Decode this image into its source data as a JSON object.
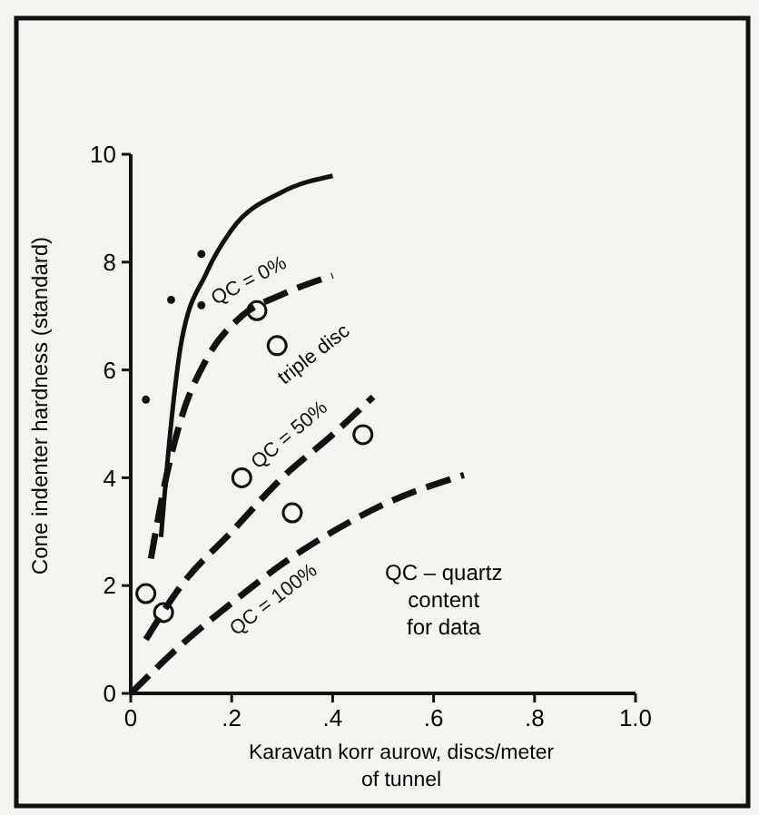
{
  "chart_data": {
    "type": "line",
    "xlabel": "Karavatn korr aurow, discs/meter of tunnel",
    "ylabel": "Cone indenter hardness (standard)",
    "xlim": [
      0,
      1.0
    ],
    "ylim": [
      0,
      10
    ],
    "xticks": [
      0,
      {
        "value": 0.2,
        "label": ".2"
      },
      {
        "value": 0.4,
        "label": ".4"
      },
      {
        "value": 0.6,
        "label": ".6"
      },
      {
        "value": 0.8,
        "label": ".8"
      },
      {
        "value": 1.0,
        "label": "1.0"
      }
    ],
    "yticks": [
      0,
      2,
      4,
      6,
      8,
      10
    ],
    "grid": false,
    "annotations": [
      "triple disc",
      "QC – quartz content for data"
    ],
    "series": [
      {
        "color": "#111111",
        "line_style": "solid",
        "x": [
          0.06,
          0.08,
          0.1,
          0.15,
          0.2,
          0.3,
          0.4
        ],
        "values": [
          2.9,
          5,
          6.5,
          7.8,
          8.6,
          9.3,
          9.6
        ]
      },
      {
        "name": "QC = 0%",
        "color": "#111111",
        "line_style": "dashed",
        "x": [
          0.04,
          0.07,
          0.1,
          0.15,
          0.22,
          0.3,
          0.4
        ],
        "values": [
          2.5,
          4,
          5.1,
          6.2,
          7,
          7.4,
          7.75
        ]
      },
      {
        "name": "QC = 50%",
        "color": "#111111",
        "line_style": "dashed",
        "x": [
          0.03,
          0.1,
          0.2,
          0.3,
          0.4,
          0.48
        ],
        "values": [
          1,
          2,
          3,
          4,
          4.8,
          5.5
        ]
      },
      {
        "name": "QC = 100%",
        "color": "#111111",
        "line_style": "dashed",
        "x": [
          0,
          0.1,
          0.21,
          0.3,
          0.4,
          0.5,
          0.66
        ],
        "values": [
          0,
          0.9,
          1.75,
          2.4,
          3,
          3.5,
          4.05
        ]
      },
      {
        "type": "scatter",
        "marker": "circle",
        "color": "#111111",
        "x": [
          0.03,
          0.065,
          0.22,
          0.25,
          0.29,
          0.32,
          0.46
        ],
        "values": [
          1.85,
          1.5,
          4.0,
          7.1,
          6.45,
          3.35,
          4.8
        ]
      },
      {
        "type": "scatter",
        "marker": "dot",
        "color": "#111111",
        "x": [
          0.03,
          0.08,
          0.14,
          0.14
        ],
        "values": [
          5.45,
          7.3,
          8.15,
          7.2
        ]
      }
    ]
  }
}
